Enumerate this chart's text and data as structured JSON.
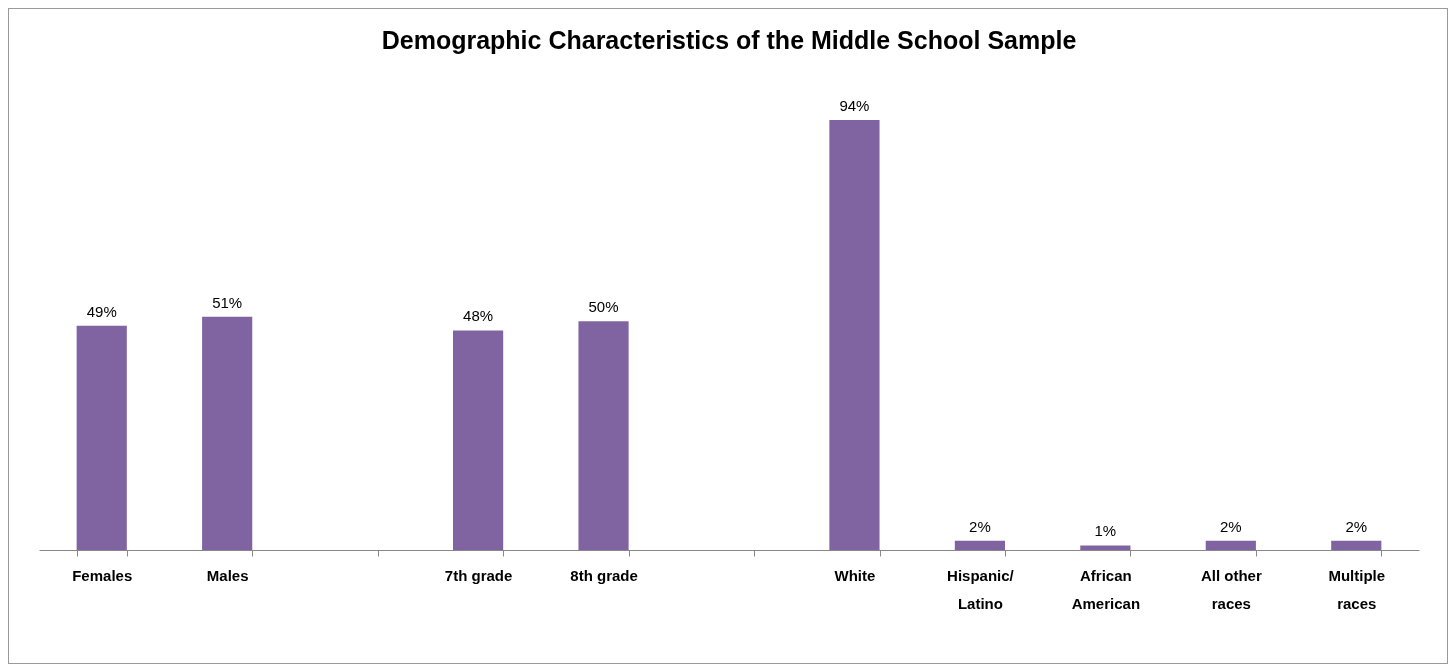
{
  "chart_data": {
    "type": "bar",
    "title": "Demographic Characteristics of the Middle School Sample",
    "categories": [
      "Females",
      "Males",
      null,
      "7th grade",
      "8th grade",
      null,
      "White",
      "Hispanic/Latino",
      "African American",
      "All other races",
      "Multiple races"
    ],
    "values": [
      49,
      51,
      null,
      48,
      50,
      null,
      94,
      2,
      1,
      2,
      2
    ],
    "value_labels": [
      "49%",
      "51%",
      null,
      "48%",
      "50%",
      null,
      "94%",
      "2%",
      "1%",
      "2%",
      "2%"
    ],
    "color": "#8064a2"
  }
}
